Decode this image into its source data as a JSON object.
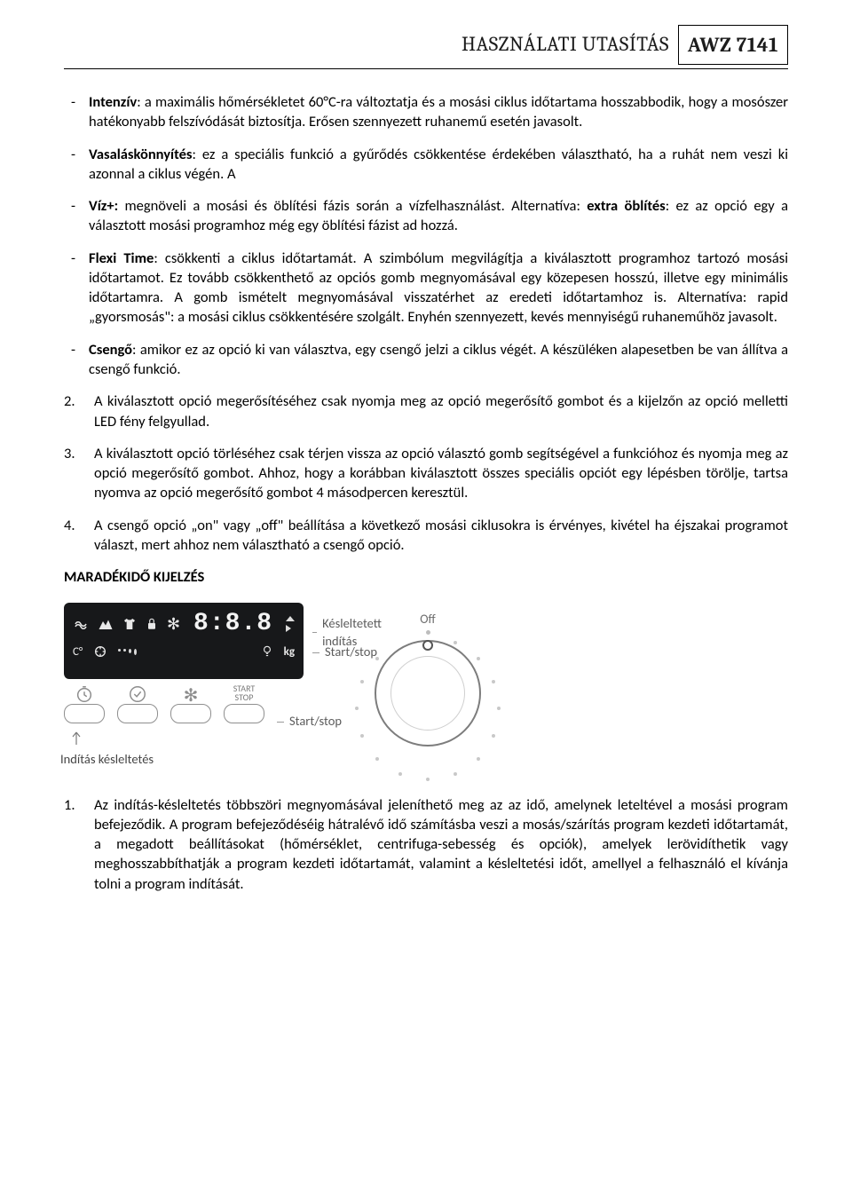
{
  "header": {
    "title": "HASZNÁLATI UTASÍTÁS",
    "model": "AWZ 7141"
  },
  "bullets": [
    {
      "lead": "Intenzív",
      "text": ": a maximális hőmérsékletet 60°C-ra változtatja és a mosási ciklus időtartama hosszabbodik, hogy a mosószer hatékonyabb felszívódását biztosítja. Erősen szennyezett ruhanemű esetén javasolt."
    },
    {
      "lead": "Vasaláskönnyítés",
      "text": ": ez a speciális funkció a gyűrődés csökkentése érdekében választható, ha a ruhát nem veszi ki azonnal a ciklus végén. A"
    },
    {
      "lead": "Víz+:",
      "text": " megnöveli a mosási és öblítési fázis során a vízfelhasználást. Alternatíva: ",
      "lead2": "extra öblítés",
      "text2": ": ez az opció egy a választott mosási programhoz még egy öblítési fázist ad hozzá."
    },
    {
      "lead": "Flexi Time",
      "text": ": csökkenti a ciklus időtartamát. A szimbólum megvilágítja a kiválasztott programhoz tartozó mosási időtartamot. Ez tovább csökkenthető az opciós gomb megnyomásával egy közepesen hosszú, illetve egy minimális időtartamra. A gomb ismételt megnyomásával visszatérhet az eredeti időtartamhoz is. Alternatíva: rapid „gyorsmosás\": a mosási ciklus csökkentésére szolgált. Enyhén szennyezett, kevés mennyiségű ruhaneműhöz javasolt."
    },
    {
      "lead": "Csengő",
      "text": ": amikor ez az opció ki van választva, egy csengő jelzi a ciklus végét. A készüléken alapesetben be van állítva a csengő funkció."
    }
  ],
  "numbered_top": [
    {
      "n": "2.",
      "text": "A kiválasztott opció megerősítéséhez csak nyomja meg az opció megerősítő gombot és a kijelzőn az opció melletti LED fény felgyullad."
    },
    {
      "n": "3.",
      "text": " A kiválasztott opció törléséhez csak térjen vissza az opció választó gomb segítségével a funkcióhoz és nyomja meg az opció megerősítő gombot. Ahhoz, hogy a korábban kiválasztott összes speciális opciót egy lépésben törölje, tartsa nyomva az opció megerősítő gombot 4 másodpercen keresztül."
    },
    {
      "n": "4.",
      "text": "A csengő opció „on\" vagy „off\" beállítása a következő mosási ciklusokra is érvényes, kivétel ha éjszakai programot választ, mert ahhoz nem választható a csengő opció."
    }
  ],
  "section_title": "MARADÉKIDŐ KIJELZÉS",
  "panel": {
    "segment": "8:8.8",
    "kg": "kg",
    "callouts": {
      "top": "Késleltetett indítás",
      "mid": "Start/stop",
      "btn4_line1": "START",
      "btn4_line2": "STOP",
      "bottom_right": "Start/stop",
      "bottom_left": "Indítás késleltetés"
    },
    "dial_off": "Off"
  },
  "numbered_bottom": [
    {
      "n": "1.",
      "text": "Az indítás-késleltetés többszöri megnyomásával jeleníthető meg az az idő, amelynek leteltével a mosási program befejeződik. A program befejeződéséig hátralévő idő számításba veszi a mosás/szárítás program kezdeti időtartamát, a megadott beállításokat (hőmérséklet, centrifuga-sebesség és opciók), amelyek lerövidíthetik vagy meghosszabbíthatják a program kezdeti időtartamát, valamint a késleltetési időt, amellyel a felhasználó el kívánja tolni a program indítását."
    }
  ],
  "colors": {
    "text": "#000000",
    "muted": "#6c6c6c",
    "panel_bg": "#17181a",
    "panel_fg": "#e8e8e8",
    "btn_border": "#8f8f8f",
    "dial_border": "#7d7d7d",
    "tick": "#c8c8c8"
  }
}
